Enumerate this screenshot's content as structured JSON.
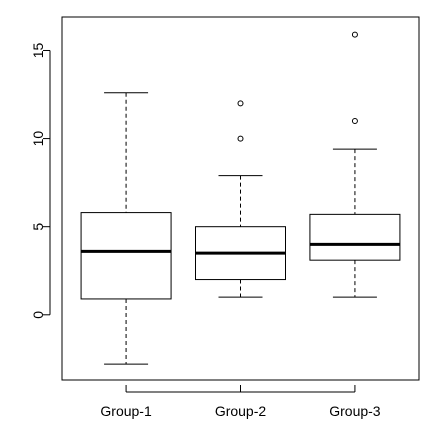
{
  "chart_data": {
    "type": "boxplot",
    "title": "",
    "xlabel": "",
    "ylabel": "",
    "categories": [
      "Group-1",
      "Group-2",
      "Group-3"
    ],
    "ylim": [
      -3.7,
      16.9
    ],
    "yticks": [
      0,
      5,
      10,
      15
    ],
    "grid": false,
    "boxes": [
      {
        "name": "Group-1",
        "lower_whisker": -2.8,
        "q1": 0.9,
        "median": 3.6,
        "q3": 5.8,
        "upper_whisker": 12.6,
        "outliers": []
      },
      {
        "name": "Group-2",
        "lower_whisker": 1.0,
        "q1": 2.0,
        "median": 3.5,
        "q3": 5.0,
        "upper_whisker": 7.9,
        "outliers": [
          10.0,
          12.0
        ]
      },
      {
        "name": "Group-3",
        "lower_whisker": 1.0,
        "q1": 3.1,
        "median": 4.0,
        "q3": 5.7,
        "upper_whisker": 9.4,
        "outliers": [
          11.0,
          15.9
        ]
      }
    ],
    "colors": {
      "box_fill": "#ffffff",
      "stroke": "#000000",
      "median": "#000000"
    }
  }
}
